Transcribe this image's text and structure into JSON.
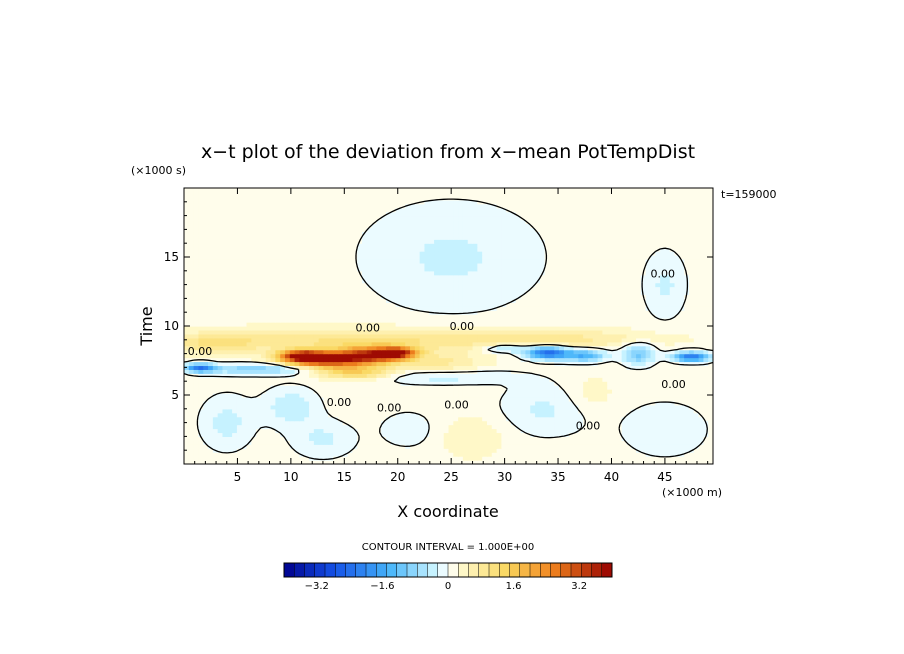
{
  "chart_data": {
    "type": "heatmap",
    "title": "x−t plot of the deviation from x−mean PotTempDist",
    "xlabel": "X coordinate",
    "ylabel": "Time",
    "x_unit": "(×1000 m)",
    "y_unit": "(×1000 s)",
    "time_stamp": "t=159000",
    "xlim": [
      0,
      49.5
    ],
    "ylim": [
      0,
      20
    ],
    "x_ticks": [
      5,
      10,
      15,
      20,
      25,
      30,
      35,
      40,
      45
    ],
    "x_tick_labels": [
      "5",
      "10",
      "15",
      "20",
      "25",
      "30",
      "35",
      "40",
      "45"
    ],
    "y_ticks": [
      5,
      10,
      15
    ],
    "y_tick_labels": [
      "5",
      "10",
      "15"
    ],
    "contour_interval_text": "CONTOUR INTERVAL = 1.000E+00",
    "zero_contour_label": "0.00",
    "zero_contour_labels": [
      {
        "x": 1.5,
        "y": 8.2
      },
      {
        "x": 17.2,
        "y": 9.9
      },
      {
        "x": 26.0,
        "y": 10.0
      },
      {
        "x": 14.5,
        "y": 4.5
      },
      {
        "x": 19.2,
        "y": 4.1
      },
      {
        "x": 25.5,
        "y": 4.3
      },
      {
        "x": 37.8,
        "y": 2.8
      },
      {
        "x": 45.8,
        "y": 5.8
      },
      {
        "x": 44.8,
        "y": 13.8
      }
    ],
    "colorbar": {
      "range": [
        -4,
        4
      ],
      "n_levels": 32,
      "tick_values": [
        -3.2,
        -1.6,
        0,
        1.6,
        3.2
      ],
      "tick_labels": [
        "−3.2",
        "−1.6",
        "0",
        "1.6",
        "3.2"
      ]
    },
    "features": [
      {
        "x": 13.0,
        "t": 7.6,
        "value": 3.4,
        "dx": 3.5,
        "dt": 0.55
      },
      {
        "x": 17.5,
        "t": 7.9,
        "value": 3.0,
        "dx": 3.0,
        "dt": 0.6
      },
      {
        "x": 20.0,
        "t": 8.1,
        "value": 2.6,
        "dx": 1.8,
        "dt": 0.4
      },
      {
        "x": 11.0,
        "t": 7.9,
        "value": 2.6,
        "dx": 2.0,
        "dt": 0.4
      },
      {
        "x": 16.0,
        "t": 6.7,
        "value": 1.4,
        "dx": 3.5,
        "dt": 0.5
      },
      {
        "x": 16.0,
        "t": 9.0,
        "value": 0.9,
        "dx": 12.0,
        "dt": 0.9
      },
      {
        "x": 3.0,
        "t": 8.8,
        "value": 0.8,
        "dx": 4.0,
        "dt": 0.7
      },
      {
        "x": 34.0,
        "t": 9.1,
        "value": 0.7,
        "dx": 10.0,
        "dt": 0.7
      },
      {
        "x": 24.0,
        "t": 7.3,
        "value": 0.7,
        "dx": 4.0,
        "dt": 0.8
      },
      {
        "x": 1.5,
        "t": 7.0,
        "value": -2.3,
        "dx": 1.3,
        "dt": 0.3
      },
      {
        "x": 7.0,
        "t": 6.9,
        "value": -1.1,
        "dx": 5.0,
        "dt": 0.4
      },
      {
        "x": 34.0,
        "t": 8.1,
        "value": -2.6,
        "dx": 2.0,
        "dt": 0.45
      },
      {
        "x": 37.5,
        "t": 7.9,
        "value": -1.6,
        "dx": 2.0,
        "dt": 0.45
      },
      {
        "x": 42.5,
        "t": 8.0,
        "value": -1.2,
        "dx": 1.5,
        "dt": 0.8
      },
      {
        "x": 47.5,
        "t": 7.8,
        "value": -2.4,
        "dx": 1.7,
        "dt": 0.35
      },
      {
        "x": 30.0,
        "t": 8.4,
        "value": -1.0,
        "dx": 2.0,
        "dt": 0.3
      },
      {
        "x": 24.0,
        "t": 6.4,
        "value": -0.6,
        "dx": 6.0,
        "dt": 0.6
      },
      {
        "x": 25.0,
        "t": 15.0,
        "value": -0.45,
        "dx": 8.5,
        "dt": 4.0
      },
      {
        "x": 45.0,
        "t": 13.0,
        "value": -0.45,
        "dx": 2.0,
        "dt": 2.5
      },
      {
        "x": 4.0,
        "t": 3.0,
        "value": -0.5,
        "dx": 2.5,
        "dt": 2.0
      },
      {
        "x": 10.0,
        "t": 4.2,
        "value": -0.6,
        "dx": 2.5,
        "dt": 1.4
      },
      {
        "x": 13.0,
        "t": 1.8,
        "value": -0.45,
        "dx": 3.0,
        "dt": 1.4
      },
      {
        "x": 34.0,
        "t": 4.0,
        "value": -0.45,
        "dx": 4.5,
        "dt": 2.0
      },
      {
        "x": 45.0,
        "t": 2.5,
        "value": -0.4,
        "dx": 4.0,
        "dt": 2.0
      },
      {
        "x": 21.0,
        "t": 2.5,
        "value": -0.3,
        "dx": 3.0,
        "dt": 1.5
      },
      {
        "x": 27.0,
        "t": 2.0,
        "value": 0.35,
        "dx": 3.0,
        "dt": 1.5
      },
      {
        "x": 38.0,
        "t": 5.0,
        "value": 0.3,
        "dx": 2.5,
        "dt": 1.5
      }
    ],
    "background_value": 0.15
  }
}
